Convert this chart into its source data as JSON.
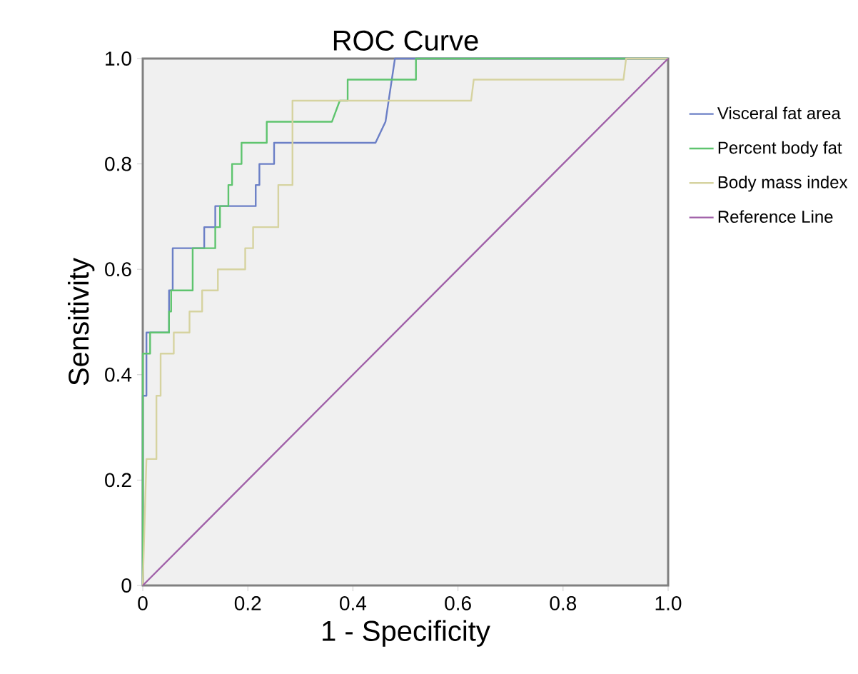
{
  "chart_data": {
    "type": "line",
    "title": "ROC Curve",
    "xlabel": "1 - Specificity",
    "ylabel": "Sensitivity",
    "xlim": [
      0,
      1
    ],
    "ylim": [
      0,
      1
    ],
    "xticks": [
      0,
      0.2,
      0.4,
      0.6,
      0.8,
      {
        "value": 1,
        "label": "1.0"
      }
    ],
    "yticks": [
      0,
      0.2,
      0.4,
      0.6,
      0.8,
      {
        "value": 1,
        "label": "1.0"
      }
    ],
    "grid": false,
    "legend": "right",
    "series": [
      {
        "name": "Visceral fat area",
        "color": "#6b7fc6",
        "x": [
          0,
          0,
          0.007,
          0.007,
          0.05,
          0.05,
          0.057,
          0.057,
          0.117,
          0.117,
          0.138,
          0.138,
          0.215,
          0.215,
          0.222,
          0.222,
          0.25,
          0.25,
          0.443,
          0.462,
          0.48,
          1
        ],
        "values": [
          0,
          0.36,
          0.36,
          0.48,
          0.48,
          0.56,
          0.56,
          0.64,
          0.64,
          0.68,
          0.68,
          0.72,
          0.72,
          0.76,
          0.76,
          0.8,
          0.8,
          0.84,
          0.84,
          0.88,
          1,
          1
        ]
      },
      {
        "name": "Percent body fat",
        "color": "#5ec46e",
        "x": [
          0,
          0,
          0.014,
          0.014,
          0.05,
          0.05,
          0.054,
          0.054,
          0.095,
          0.095,
          0.138,
          0.138,
          0.147,
          0.147,
          0.163,
          0.163,
          0.17,
          0.17,
          0.188,
          0.188,
          0.236,
          0.236,
          0.36,
          0.375,
          0.39,
          0.39,
          0.52,
          0.52,
          1
        ],
        "values": [
          0,
          0.44,
          0.44,
          0.48,
          0.48,
          0.52,
          0.52,
          0.56,
          0.56,
          0.64,
          0.64,
          0.68,
          0.68,
          0.72,
          0.72,
          0.76,
          0.76,
          0.8,
          0.8,
          0.84,
          0.84,
          0.88,
          0.88,
          0.92,
          0.92,
          0.96,
          0.96,
          1,
          1
        ]
      },
      {
        "name": "Body mass index",
        "color": "#d6d3a0",
        "x": [
          0,
          0.007,
          0.026,
          0.026,
          0.034,
          0.034,
          0.059,
          0.059,
          0.089,
          0.089,
          0.113,
          0.113,
          0.143,
          0.143,
          0.195,
          0.195,
          0.21,
          0.21,
          0.258,
          0.258,
          0.285,
          0.285,
          0.625,
          0.63,
          0.915,
          0.92,
          1
        ],
        "values": [
          0,
          0.24,
          0.24,
          0.36,
          0.36,
          0.44,
          0.44,
          0.48,
          0.48,
          0.52,
          0.52,
          0.56,
          0.56,
          0.6,
          0.6,
          0.64,
          0.64,
          0.68,
          0.68,
          0.76,
          0.76,
          0.92,
          0.92,
          0.96,
          0.96,
          1,
          1
        ]
      },
      {
        "name": "Reference Line",
        "color": "#a060a8",
        "x": [
          0,
          1
        ],
        "values": [
          0,
          1
        ]
      }
    ]
  }
}
